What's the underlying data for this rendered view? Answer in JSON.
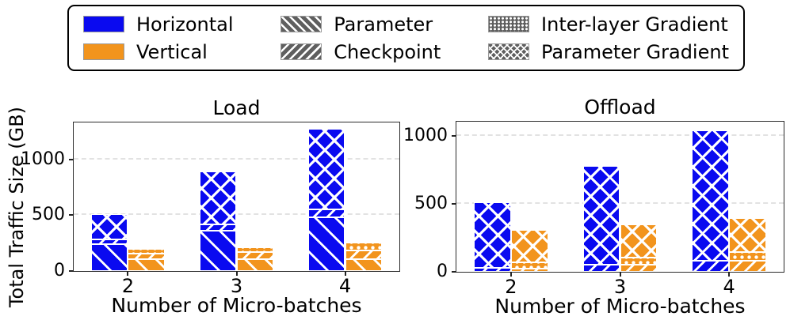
{
  "colors": {
    "horizontal": "#0a0af0",
    "vertical": "#f2941d",
    "hatch_gray": "#5f5f5f"
  },
  "ylabel": "Total Traffic Size (GB)",
  "legend": {
    "items": [
      {
        "label": "Horizontal",
        "swatch": "solid-blue"
      },
      {
        "label": "Vertical",
        "swatch": "solid-orange"
      },
      {
        "label": "Parameter",
        "swatch": "hatch-slash"
      },
      {
        "label": "Checkpoint",
        "swatch": "hatch-backslash"
      },
      {
        "label": "Inter-layer Gradient",
        "swatch": "hatch-dots"
      },
      {
        "label": "Parameter Gradient",
        "swatch": "hatch-cross"
      }
    ]
  },
  "chart_data": [
    {
      "type": "bar",
      "variant": "grouped-stacked",
      "title": "Load",
      "xlabel": "Number of Micro-batches",
      "ylabel": "Total Traffic Size (GB)",
      "categories": [
        "2",
        "3",
        "4"
      ],
      "yticks": [
        0,
        500,
        1000
      ],
      "ylim": [
        0,
        1330
      ],
      "grid": "dashed-horizontal",
      "legend_position": "top-figure",
      "groups": [
        {
          "category": "2",
          "bars": [
            {
              "series": "Horizontal",
              "segments": [
                {
                  "part": "Parameter",
                  "value": 240
                },
                {
                  "part": "Checkpoint",
                  "value": 45
                },
                {
                  "part": "Parameter Gradient",
                  "value": 225
                }
              ]
            },
            {
              "series": "Vertical",
              "segments": [
                {
                  "part": "Parameter",
                  "value": 105
                },
                {
                  "part": "Checkpoint",
                  "value": 50
                },
                {
                  "part": "Inter-layer Gradient",
                  "value": 40
                }
              ]
            }
          ]
        },
        {
          "category": "3",
          "bars": [
            {
              "series": "Horizontal",
              "segments": [
                {
                  "part": "Parameter",
                  "value": 360
                },
                {
                  "part": "Checkpoint",
                  "value": 55
                },
                {
                  "part": "Parameter Gradient",
                  "value": 475
                }
              ]
            },
            {
              "series": "Vertical",
              "segments": [
                {
                  "part": "Parameter",
                  "value": 105
                },
                {
                  "part": "Checkpoint",
                  "value": 62
                },
                {
                  "part": "Inter-layer Gradient",
                  "value": 48
                }
              ]
            }
          ]
        },
        {
          "category": "4",
          "bars": [
            {
              "series": "Horizontal",
              "segments": [
                {
                  "part": "Parameter",
                  "value": 480
                },
                {
                  "part": "Checkpoint",
                  "value": 75
                },
                {
                  "part": "Parameter Gradient",
                  "value": 720
                }
              ]
            },
            {
              "series": "Vertical",
              "segments": [
                {
                  "part": "Parameter",
                  "value": 105
                },
                {
                  "part": "Checkpoint",
                  "value": 80
                },
                {
                  "part": "Inter-layer Gradient",
                  "value": 72
                }
              ]
            }
          ]
        }
      ]
    },
    {
      "type": "bar",
      "variant": "grouped-stacked",
      "title": "Offload",
      "xlabel": "Number of Micro-batches",
      "ylabel": "Total Traffic Size (GB)",
      "categories": [
        "2",
        "3",
        "4"
      ],
      "yticks": [
        0,
        500,
        1000
      ],
      "ylim": [
        0,
        1105
      ],
      "grid": "dashed-horizontal",
      "legend_position": "top-figure",
      "groups": [
        {
          "category": "2",
          "bars": [
            {
              "series": "Horizontal",
              "segments": [
                {
                  "part": "Checkpoint",
                  "value": 30
                },
                {
                  "part": "Parameter Gradient",
                  "value": 480
                }
              ]
            },
            {
              "series": "Vertical",
              "segments": [
                {
                  "part": "Checkpoint",
                  "value": 25
                },
                {
                  "part": "Inter-layer Gradient",
                  "value": 45
                },
                {
                  "part": "Parameter Gradient",
                  "value": 240
                }
              ]
            }
          ]
        },
        {
          "category": "3",
          "bars": [
            {
              "series": "Horizontal",
              "segments": [
                {
                  "part": "Checkpoint",
                  "value": 55
                },
                {
                  "part": "Parameter Gradient",
                  "value": 725
                }
              ]
            },
            {
              "series": "Vertical",
              "segments": [
                {
                  "part": "Checkpoint",
                  "value": 50
                },
                {
                  "part": "Inter-layer Gradient",
                  "value": 55
                },
                {
                  "part": "Parameter Gradient",
                  "value": 245
                }
              ]
            }
          ]
        },
        {
          "category": "4",
          "bars": [
            {
              "series": "Horizontal",
              "segments": [
                {
                  "part": "Checkpoint",
                  "value": 80
                },
                {
                  "part": "Parameter Gradient",
                  "value": 960
                }
              ]
            },
            {
              "series": "Vertical",
              "segments": [
                {
                  "part": "Checkpoint",
                  "value": 80
                },
                {
                  "part": "Inter-layer Gradient",
                  "value": 65
                },
                {
                  "part": "Parameter Gradient",
                  "value": 250
                }
              ]
            }
          ]
        }
      ]
    }
  ]
}
